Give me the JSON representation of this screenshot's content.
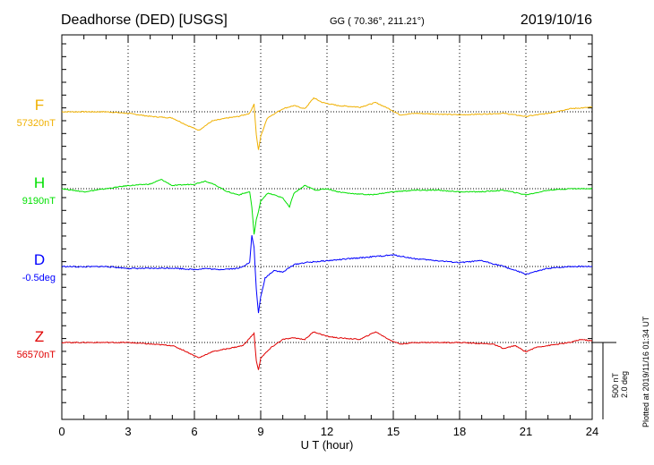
{
  "header": {
    "station": "Deadhorse (DED)  [USGS]",
    "coords": "GG ( 70.36°, 211.21°)",
    "date": "2019/10/16"
  },
  "scale": {
    "nt": "500 nT",
    "deg": "2.0 deg"
  },
  "plotted_at": "Plotted at 2019/11/16 01:34  UT",
  "chart_data": {
    "type": "line",
    "title": "Deadhorse (DED)  [USGS]",
    "xlabel": "U T (hour)",
    "xlim": [
      0,
      24
    ],
    "x_ticks": [
      "0",
      "3",
      "6",
      "9",
      "12",
      "15",
      "18",
      "21",
      "24"
    ],
    "grid": true,
    "scale_bar": {
      "nT": 500,
      "deg": 2.0
    },
    "series": [
      {
        "name": "F",
        "baseline_label": "57320nT",
        "unit": "nT",
        "baseline": 57320,
        "color": "#f0b000",
        "points": [
          [
            0,
            0
          ],
          [
            2,
            0
          ],
          [
            3,
            -10
          ],
          [
            4,
            -30
          ],
          [
            5,
            -40
          ],
          [
            5.7,
            -90
          ],
          [
            6.2,
            -120
          ],
          [
            6.8,
            -60
          ],
          [
            7.5,
            -40
          ],
          [
            8.0,
            -30
          ],
          [
            8.5,
            -10
          ],
          [
            8.7,
            50
          ],
          [
            8.8,
            -150
          ],
          [
            8.9,
            -250
          ],
          [
            9.0,
            -160
          ],
          [
            9.3,
            -40
          ],
          [
            10,
            20
          ],
          [
            10.5,
            40
          ],
          [
            11,
            20
          ],
          [
            11.4,
            90
          ],
          [
            11.8,
            60
          ],
          [
            12.5,
            40
          ],
          [
            13.5,
            30
          ],
          [
            14.2,
            60
          ],
          [
            14.8,
            20
          ],
          [
            15.3,
            -20
          ],
          [
            16,
            -10
          ],
          [
            18,
            -20
          ],
          [
            20,
            -10
          ],
          [
            21,
            -30
          ],
          [
            22,
            -10
          ],
          [
            23,
            20
          ],
          [
            24,
            30
          ]
        ]
      },
      {
        "name": "H",
        "baseline_label": "9190nT",
        "unit": "nT",
        "baseline": 9190,
        "color": "#00e000",
        "points": [
          [
            0,
            0
          ],
          [
            1,
            -20
          ],
          [
            2,
            0
          ],
          [
            3,
            20
          ],
          [
            4,
            30
          ],
          [
            4.5,
            60
          ],
          [
            5,
            20
          ],
          [
            6,
            30
          ],
          [
            6.5,
            50
          ],
          [
            7,
            20
          ],
          [
            7.5,
            -20
          ],
          [
            8,
            -40
          ],
          [
            8.5,
            -20
          ],
          [
            8.6,
            -120
          ],
          [
            8.7,
            -300
          ],
          [
            8.8,
            -200
          ],
          [
            8.9,
            -150
          ],
          [
            9.0,
            -80
          ],
          [
            9.3,
            -30
          ],
          [
            9.6,
            -40
          ],
          [
            10,
            -60
          ],
          [
            10.3,
            -120
          ],
          [
            10.5,
            -30
          ],
          [
            11,
            20
          ],
          [
            11.5,
            -10
          ],
          [
            12,
            0
          ],
          [
            12.5,
            -20
          ],
          [
            13,
            -30
          ],
          [
            14,
            -40
          ],
          [
            15,
            -20
          ],
          [
            16,
            -10
          ],
          [
            17,
            -10
          ],
          [
            18,
            -20
          ],
          [
            19,
            -20
          ],
          [
            20,
            -10
          ],
          [
            21,
            -40
          ],
          [
            22,
            -10
          ],
          [
            23,
            0
          ],
          [
            24,
            0
          ]
        ]
      },
      {
        "name": "D",
        "baseline_label": "-0.5deg",
        "unit": "deg",
        "baseline": -0.5,
        "color": "#0000ff",
        "points": [
          [
            0,
            0
          ],
          [
            1,
            -0.01
          ],
          [
            2,
            0
          ],
          [
            3,
            -0.05
          ],
          [
            4,
            -0.05
          ],
          [
            5,
            -0.04
          ],
          [
            6,
            -0.08
          ],
          [
            6.5,
            -0.05
          ],
          [
            7,
            -0.08
          ],
          [
            8,
            -0.05
          ],
          [
            8.5,
            0.1
          ],
          [
            8.6,
            0.8
          ],
          [
            8.7,
            0.5
          ],
          [
            8.8,
            -0.6
          ],
          [
            8.9,
            -1.2
          ],
          [
            9.0,
            -0.8
          ],
          [
            9.2,
            -0.3
          ],
          [
            9.6,
            -0.1
          ],
          [
            10,
            -0.15
          ],
          [
            10.5,
            0.05
          ],
          [
            11,
            0.1
          ],
          [
            12,
            0.15
          ],
          [
            13,
            0.2
          ],
          [
            14,
            0.25
          ],
          [
            15,
            0.3
          ],
          [
            16,
            0.2
          ],
          [
            17,
            0.15
          ],
          [
            18,
            0.1
          ],
          [
            19,
            0.15
          ],
          [
            20,
            0
          ],
          [
            21,
            -0.2
          ],
          [
            22,
            -0.05
          ],
          [
            23,
            0
          ],
          [
            24,
            0
          ]
        ]
      },
      {
        "name": "Z",
        "baseline_label": "56570nT",
        "unit": "nT",
        "baseline": 56570,
        "color": "#e00000",
        "points": [
          [
            0,
            0
          ],
          [
            2,
            0
          ],
          [
            3,
            0
          ],
          [
            4,
            -10
          ],
          [
            5,
            -20
          ],
          [
            5.5,
            -50
          ],
          [
            6.2,
            -100
          ],
          [
            6.8,
            -60
          ],
          [
            7.5,
            -40
          ],
          [
            8.2,
            -20
          ],
          [
            8.7,
            60
          ],
          [
            8.8,
            -120
          ],
          [
            8.9,
            -180
          ],
          [
            9.0,
            -100
          ],
          [
            9.5,
            -30
          ],
          [
            10,
            20
          ],
          [
            10.5,
            30
          ],
          [
            11,
            20
          ],
          [
            11.4,
            70
          ],
          [
            12,
            40
          ],
          [
            12.5,
            30
          ],
          [
            13.5,
            20
          ],
          [
            14.2,
            70
          ],
          [
            14.8,
            20
          ],
          [
            15.3,
            -10
          ],
          [
            16,
            0
          ],
          [
            18,
            0
          ],
          [
            19.5,
            -10
          ],
          [
            20,
            -40
          ],
          [
            20.5,
            -20
          ],
          [
            21,
            -60
          ],
          [
            21.5,
            -30
          ],
          [
            22,
            -20
          ],
          [
            23,
            0
          ],
          [
            23.5,
            20
          ],
          [
            24,
            10
          ]
        ]
      }
    ]
  }
}
